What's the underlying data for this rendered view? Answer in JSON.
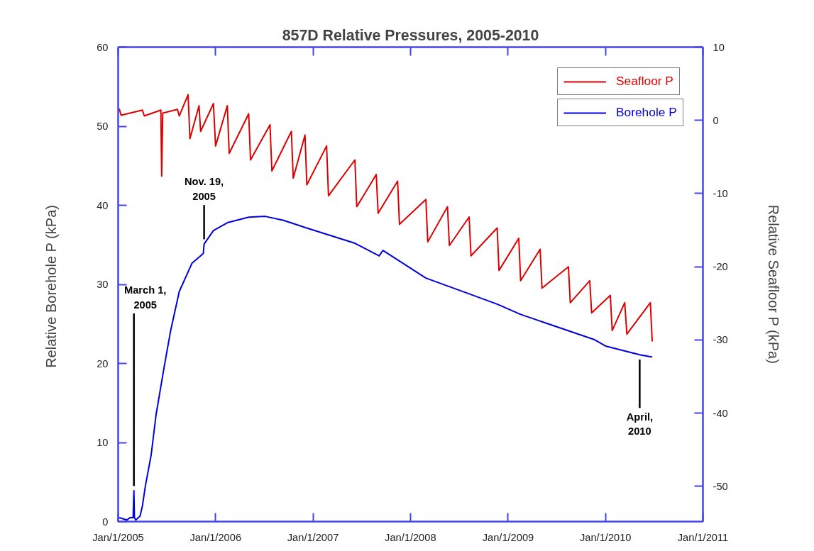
{
  "chart_data": {
    "type": "line",
    "title": "857D Relative Pressures, 2005-2010",
    "ylabel": "Relative  Borehole P (kPa)",
    "y2label": "Relative Seafloor P (kPa)",
    "xlim": [
      "2005-01-01",
      "2011-01-01"
    ],
    "xticks": [
      {
        "value": "2005-01-01",
        "label": "Jan/1/2005"
      },
      {
        "value": "2006-01-01",
        "label": "Jan/1/2006"
      },
      {
        "value": "2007-01-01",
        "label": "Jan/1/2007"
      },
      {
        "value": "2008-01-01",
        "label": "Jan/1/2008"
      },
      {
        "value": "2009-01-01",
        "label": "Jan/1/2009"
      },
      {
        "value": "2010-01-01",
        "label": "Jan/1/2010"
      },
      {
        "value": "2011-01-01",
        "label": "Jan/1/2011"
      }
    ],
    "ylim": [
      0,
      60
    ],
    "yticks": [
      0,
      10,
      20,
      30,
      40,
      50,
      60
    ],
    "y2lim": [
      -54.8,
      10
    ],
    "y2ticks": [
      -50,
      -40,
      -30,
      -20,
      -10,
      0,
      10
    ],
    "legend": "top right",
    "series": [
      {
        "name": "Seafloor P",
        "color": "#dd0000",
        "axis": "y2",
        "x": [
          "2005-01-05",
          "2005-01-12",
          "2005-04-02",
          "2005-04-09",
          "2005-06-10",
          "2005-06-13",
          "2005-06-17",
          "2005-08-11",
          "2005-08-18",
          "2005-09-20",
          "2005-09-27",
          "2005-10-31",
          "2005-11-06",
          "2005-12-24",
          "2006-01-01",
          "2006-02-14",
          "2006-02-21",
          "2006-05-05",
          "2006-05-12",
          "2006-07-24",
          "2006-07-31",
          "2006-10-12",
          "2006-10-19",
          "2006-12-02",
          "2006-12-09",
          "2007-02-21",
          "2007-02-28",
          "2007-06-07",
          "2007-06-14",
          "2007-08-26",
          "2007-09-02",
          "2007-11-14",
          "2007-11-21",
          "2008-02-28",
          "2008-03-06",
          "2008-05-19",
          "2008-05-26",
          "2008-08-08",
          "2008-08-15",
          "2008-11-21",
          "2008-11-28",
          "2009-02-10",
          "2009-02-17",
          "2009-05-01",
          "2009-05-08",
          "2009-08-15",
          "2009-08-22",
          "2009-11-03",
          "2009-11-10",
          "2010-01-19",
          "2010-01-26",
          "2010-03-14",
          "2010-03-22",
          "2010-06-18",
          "2010-06-25"
        ],
        "values": [
          1.6,
          0.7,
          1.4,
          0.6,
          1.4,
          -7.6,
          1.0,
          1.5,
          0.6,
          3.5,
          -2.5,
          2.0,
          -1.5,
          2.3,
          -3.5,
          2.0,
          -4.5,
          0.9,
          -5.4,
          -0.6,
          -6.9,
          -1.5,
          -7.9,
          -2.0,
          -8.8,
          -3.5,
          -10.3,
          -5.4,
          -11.8,
          -7.4,
          -12.7,
          -8.3,
          -14.2,
          -10.8,
          -16.6,
          -11.8,
          -17.1,
          -13.2,
          -18.5,
          -14.7,
          -20.5,
          -16.1,
          -21.9,
          -17.6,
          -22.9,
          -20.0,
          -24.9,
          -21.9,
          -26.3,
          -23.9,
          -28.7,
          -24.9,
          -29.2,
          -24.9,
          -30.2
        ]
      },
      {
        "name": "Borehole P",
        "color": "#0000dd",
        "x": [
          "2005-01-05",
          "2005-02-03",
          "2005-02-14",
          "2005-02-26",
          "2005-03-01",
          "2005-03-03",
          "2005-03-08",
          "2005-03-24",
          "2005-04-02",
          "2005-04-13",
          "2005-05-05",
          "2005-05-23",
          "2005-06-21",
          "2005-07-17",
          "2005-08-18",
          "2005-10-05",
          "2005-11-16",
          "2005-11-19",
          "2005-12-24",
          "2006-02-14",
          "2006-05-05",
          "2006-07-06",
          "2006-09-13",
          "2006-12-02",
          "2007-06-07",
          "2007-09-06",
          "2007-09-20",
          "2008-02-28",
          "2008-08-08",
          "2008-11-21",
          "2009-02-17",
          "2009-11-21",
          "2010-01-01",
          "2010-05-09",
          "2010-06-25"
        ],
        "values": [
          0.5,
          0.2,
          0.5,
          0.5,
          3.9,
          0.5,
          0.2,
          0.7,
          2.0,
          4.5,
          8.5,
          13.5,
          19.3,
          24.2,
          29.1,
          32.7,
          33.9,
          35.1,
          36.8,
          37.8,
          38.5,
          38.6,
          38.1,
          37.2,
          35.2,
          33.6,
          34.3,
          30.8,
          28.8,
          27.5,
          26.2,
          23.0,
          22.2,
          21.1,
          20.8
        ]
      }
    ],
    "annotations": [
      {
        "text": "March 1,\n2005",
        "x": "2005-03-01",
        "y": 3.9
      },
      {
        "text": "Nov. 19,\n2005",
        "x": "2005-11-19",
        "y": 35.1
      },
      {
        "text": "April,\n2010",
        "x": "2010-05-09",
        "y": 21.1
      }
    ]
  }
}
